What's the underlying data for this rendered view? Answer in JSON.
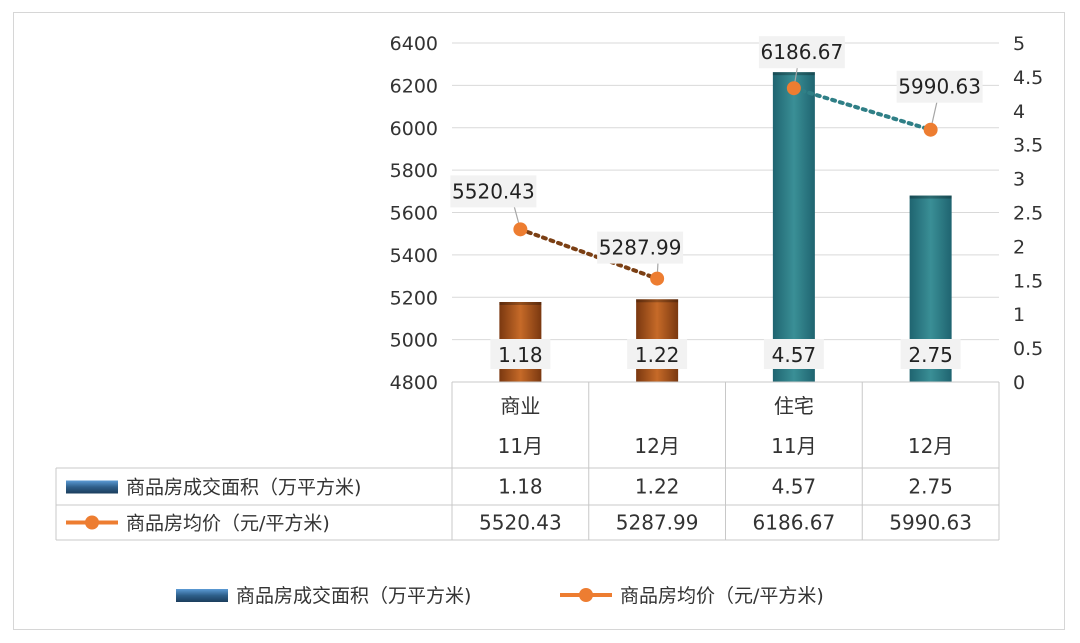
{
  "chart_data": {
    "type": "bar+line",
    "categories": [
      {
        "group": "商业",
        "period": "11月"
      },
      {
        "group": "",
        "period": "12月"
      },
      {
        "group": "住宅",
        "period": "11月"
      },
      {
        "group": "",
        "period": "12月"
      }
    ],
    "series": [
      {
        "name": "商品房成交面积（万平方米)",
        "type": "bar",
        "axis": "right",
        "values": [
          1.18,
          1.22,
          4.57,
          2.75
        ],
        "labels": [
          "1.18",
          "1.22",
          "4.57",
          "2.75"
        ],
        "colors": [
          "#b0561a",
          "#b0561a",
          "#2f7f86",
          "#2f7f86"
        ]
      },
      {
        "name": "商品房均价（元/平方米)",
        "type": "line",
        "axis": "left",
        "values": [
          5520.43,
          5287.99,
          6186.67,
          5990.63
        ],
        "labels": [
          "5520.43",
          "5287.99",
          "6186.67",
          "5990.63"
        ],
        "color": "#ed7d31",
        "segment_colors": [
          "#7b3f14",
          "#2f7f86"
        ]
      }
    ],
    "y_left": {
      "min": 4800,
      "max": 6400,
      "ticks": [
        "4800",
        "5000",
        "5200",
        "5400",
        "5600",
        "5800",
        "6000",
        "6200",
        "6400"
      ]
    },
    "y_right": {
      "min": 0,
      "max": 5,
      "ticks": [
        "0",
        "0.5",
        "1",
        "1.5",
        "2",
        "2.5",
        "3",
        "3.5",
        "4",
        "4.5",
        "5"
      ]
    },
    "data_table": {
      "rows": [
        {
          "legend": "商品房成交面积（万平方米)",
          "values": [
            "1.18",
            "1.22",
            "4.57",
            "2.75"
          ]
        },
        {
          "legend": "商品房均价（元/平方米)",
          "values": [
            "5520.43",
            "5287.99",
            "6186.67",
            "5990.63"
          ]
        }
      ]
    },
    "legend": {
      "position": "bottom",
      "items": [
        "商品房成交面积（万平方米)",
        "商品房均价（元/平方米)"
      ]
    },
    "grid": true
  }
}
